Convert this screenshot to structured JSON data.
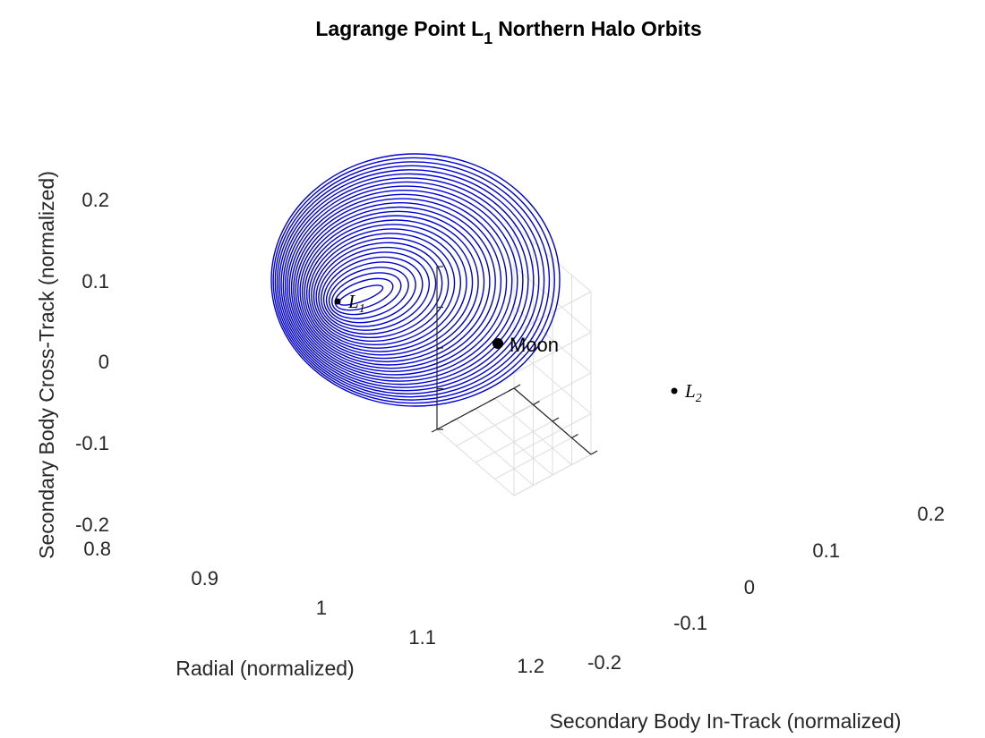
{
  "chart_data": {
    "type": "line",
    "title": {
      "main": "Lagrange Point L",
      "subscript": "1",
      "rest": "Northern Halo Orbits"
    },
    "xlabel": "Radial (normalized)",
    "ylabel": "Secondary Body In-Track (normalized)",
    "zlabel": "Secondary Body Cross-Track (normalized)",
    "xlim": [
      0.8,
      1.2
    ],
    "ylim": [
      -0.2,
      0.2
    ],
    "zlim": [
      -0.2,
      0.2
    ],
    "x_ticks": [
      "0.8",
      "0.9",
      "1",
      "1.1",
      "1.2"
    ],
    "y_ticks": [
      "-0.2",
      "-0.1",
      "0",
      "0.1",
      "0.2"
    ],
    "z_ticks": [
      "-0.2",
      "-0.1",
      "0",
      "0.1",
      "0.2"
    ],
    "grid": true,
    "series_color": "#0000d4",
    "halo_orbit_family": {
      "count": 30,
      "center": [
        0.836,
        0,
        0.07
      ]
    },
    "points": [
      {
        "name": "L",
        "sub": "1",
        "x": 0.836,
        "y": 0.0,
        "z": 0.0
      },
      {
        "name": "Moon",
        "x": 0.988,
        "y": 0.0,
        "z": 0.0
      },
      {
        "name": "L",
        "sub": "2",
        "x": 1.156,
        "y": 0.0,
        "z": 0.0
      }
    ]
  }
}
